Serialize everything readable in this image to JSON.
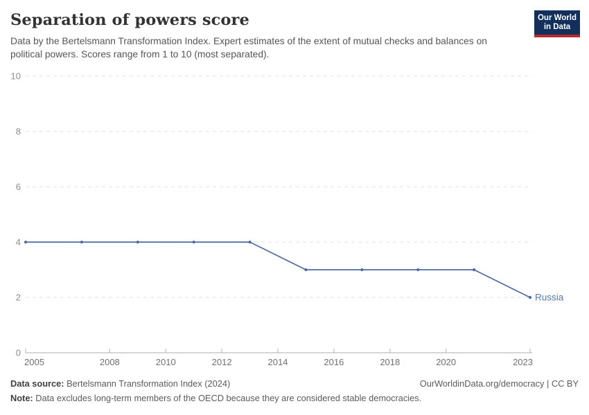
{
  "header": {
    "title": "Separation of powers score",
    "subtitle": "Data by the Bertelsmann Transformation Index. Expert estimates of the extent of mutual checks and balances on political powers. Scores range from 1 to 10 (most separated)."
  },
  "logo": {
    "line1": "Our World",
    "line2": "in Data",
    "bg_color": "#12305b",
    "accent_color": "#b52b30"
  },
  "chart_data": {
    "type": "line",
    "title": "Separation of powers score",
    "x": [
      2005,
      2007,
      2009,
      2011,
      2013,
      2015,
      2017,
      2019,
      2021,
      2023
    ],
    "series": [
      {
        "name": "Russia",
        "values": [
          4,
          4,
          4,
          4,
          4,
          3,
          3,
          3,
          3,
          2
        ]
      }
    ],
    "xlabel": "",
    "ylabel": "",
    "ylim": [
      0,
      10
    ],
    "yticks": [
      0,
      2,
      4,
      6,
      8,
      10
    ],
    "xticks": [
      2005,
      2008,
      2010,
      2012,
      2014,
      2016,
      2018,
      2020,
      2023
    ],
    "grid": "horizontal-dashed",
    "legend_position": "end-of-line-label",
    "colors": {
      "line": "#4c6aa3",
      "entity_label": "#5878ab",
      "gridline": "#e2e2e2",
      "axis_line": "#adadad",
      "tick_mark": "#b3b3b3",
      "y_tick_label": "#8b8b8b",
      "x_tick_label": "#6e6e6e"
    }
  },
  "footer": {
    "source_label": "Data source:",
    "source_value": " Bertelsmann Transformation Index (2024)",
    "note_label": "Note:",
    "note_value": " Data excludes long-term members of the OECD because they are considered stable democracies.",
    "link": "OurWorldinData.org/democracy | CC BY"
  }
}
